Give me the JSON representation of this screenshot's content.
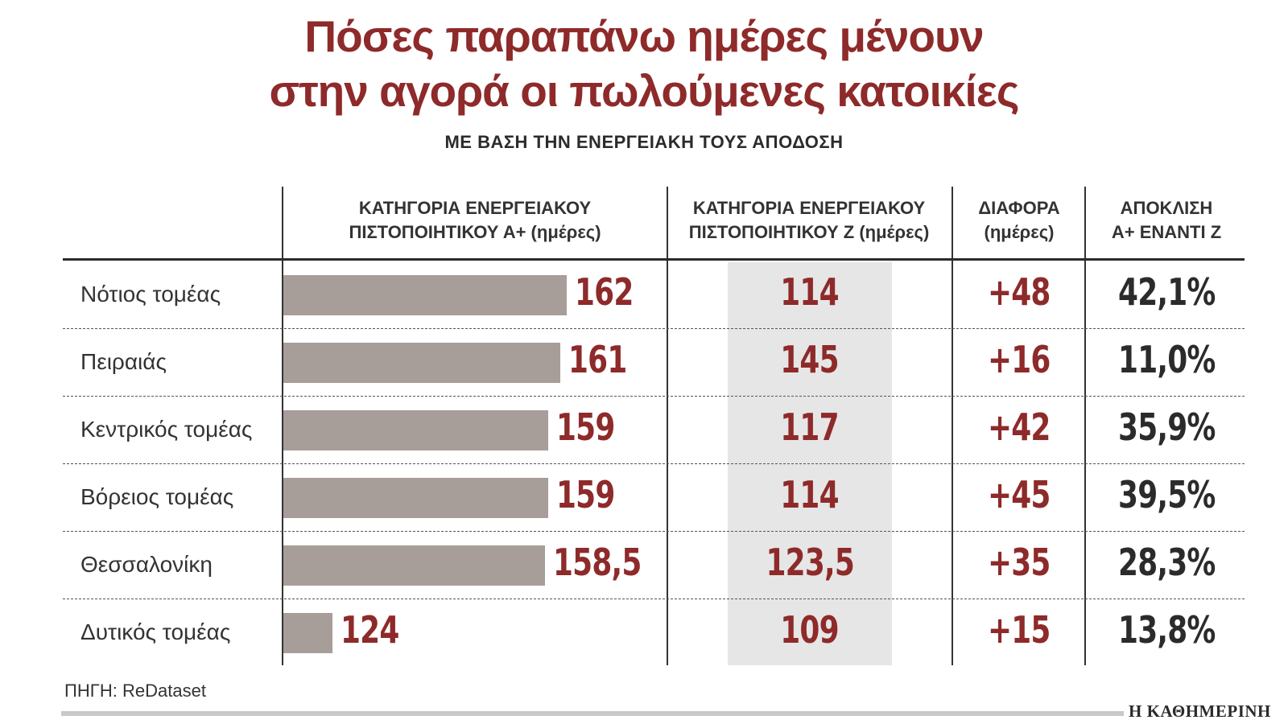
{
  "title_line1": "Πόσες παραπάνω ημέρες μένουν",
  "title_line2": "στην αγορά οι πωλούμενες κατοικίες",
  "subtitle": "ΜΕ ΒΑΣΗ ΤΗΝ ΕΝΕΡΓΕΙΑΚΗ ΤΟΥΣ ΑΠΟΔΟΣΗ",
  "headers": {
    "a_plus_line1": "ΚΑΤΗΓΟΡΙΑ ΕΝΕΡΓΕΙΑΚΟΥ",
    "a_plus_line2": "ΠΙΣΤΟΠΟΙΗΤΙΚΟΥ Α+ (ημέρες)",
    "z_line1": "ΚΑΤΗΓΟΡΙΑ ΕΝΕΡΓΕΙΑΚΟΥ",
    "z_line2": "ΠΙΣΤΟΠΟΙΗΤΙΚΟΥ Ζ (ημέρες)",
    "diff_line1": "ΔΙΑΦΟΡΑ",
    "diff_line2": "(ημέρες)",
    "dev_line1": "ΑΠΟΚΛΙΣΗ",
    "dev_line2": "Α+ ΕΝΑΝΤΙ Ζ"
  },
  "source": "ΠΗΓΗ: ReDataset",
  "brand": "Η ΚΑΘΗΜΕΡΙΝΗ",
  "colors": {
    "accent": "#8e2a2a",
    "bar": "#a79d99",
    "z_column_bg": "#e6e6e6"
  },
  "chart_data": {
    "type": "table",
    "columns": [
      "ΚΑΤΗΓΟΡΙΑ ΕΝΕΡΓΕΙΑΚΟΥ ΠΙΣΤΟΠΟΙΗΤΙΚΟΥ Α+ (ημέρες)",
      "ΚΑΤΗΓΟΡΙΑ ΕΝΕΡΓΕΙΑΚΟΥ ΠΙΣΤΟΠΟΙΗΤΙΚΟΥ Ζ (ημέρες)",
      "ΔΙΑΦΟΡΑ (ημέρες)",
      "ΑΠΟΚΛΙΣΗ Α+ ΕΝΑΝΤΙ Ζ"
    ],
    "rows": [
      {
        "region": "Νότιος τομέας",
        "a_plus": 162,
        "a_plus_label": "162",
        "z_label": "114",
        "diff_label": "+48",
        "dev_label": "42,1%"
      },
      {
        "region": "Πειραιάς",
        "a_plus": 161,
        "a_plus_label": "161",
        "z_label": "145",
        "diff_label": "+16",
        "dev_label": "11,0%"
      },
      {
        "region": "Κεντρικός τομέας",
        "a_plus": 159,
        "a_plus_label": "159",
        "z_label": "117",
        "diff_label": "+42",
        "dev_label": "35,9%"
      },
      {
        "region": "Βόρειος τομέας",
        "a_plus": 159,
        "a_plus_label": "159",
        "z_label": "114",
        "diff_label": "+45",
        "dev_label": "39,5%"
      },
      {
        "region": "Θεσσαλονίκη",
        "a_plus": 158.5,
        "a_plus_label": "158,5",
        "z_label": "123,5",
        "diff_label": "+35",
        "dev_label": "28,3%"
      },
      {
        "region": "Δυτικός τομέας",
        "a_plus": 124,
        "a_plus_label": "124",
        "z_label": "109",
        "diff_label": "+15",
        "dev_label": "13,8%"
      }
    ]
  }
}
